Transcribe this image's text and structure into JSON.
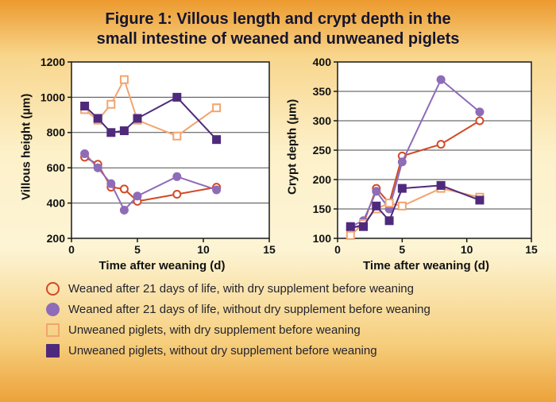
{
  "figure": {
    "title_line1": "Figure 1: Villous length and crypt depth in the",
    "title_line2": "small intestine of weaned and unweaned piglets"
  },
  "chart_data": [
    {
      "type": "line",
      "ylabel": "Villous height (µm)",
      "xlabel": "Time after weaning (d)",
      "ylim": [
        200,
        1200
      ],
      "yticks": [
        200,
        400,
        600,
        800,
        1000,
        1200
      ],
      "xlim": [
        0,
        15
      ],
      "xticks": [
        0,
        5,
        10,
        15
      ],
      "grid": "horizontal",
      "x": [
        1,
        2,
        3,
        4,
        5,
        8,
        11
      ],
      "series": [
        {
          "name": "Weaned after 21 days of life, with dry supplement before weaning",
          "marker": "open-circle",
          "color": "#d24a26",
          "values": [
            660,
            620,
            490,
            480,
            410,
            450,
            490
          ]
        },
        {
          "name": "Weaned after 21 days of life, without dry supplement before weaning",
          "marker": "filled-circle",
          "color": "#8e6cb8",
          "values": [
            680,
            600,
            510,
            360,
            440,
            550,
            475
          ]
        },
        {
          "name": "Unweaned piglets, with dry supplement before weaning",
          "marker": "open-square",
          "color": "#f2a470",
          "values": [
            930,
            870,
            960,
            1100,
            870,
            780,
            940
          ]
        },
        {
          "name": "Unweaned piglets, without dry supplement before weaning",
          "marker": "filled-square",
          "color": "#4f2a7c",
          "values": [
            950,
            880,
            800,
            810,
            880,
            1000,
            760
          ]
        }
      ]
    },
    {
      "type": "line",
      "ylabel": "Crypt depth (µm)",
      "xlabel": "Time after weaning (d)",
      "ylim": [
        100,
        400
      ],
      "yticks": [
        100,
        150,
        200,
        250,
        300,
        350,
        400
      ],
      "xlim": [
        0,
        15
      ],
      "xticks": [
        0,
        5,
        10,
        15
      ],
      "grid": "horizontal",
      "x": [
        1,
        2,
        3,
        4,
        5,
        8,
        11
      ],
      "series": [
        {
          "name": "Weaned after 21 days of life, with dry supplement before weaning",
          "marker": "open-circle",
          "color": "#d24a26",
          "values": [
            115,
            125,
            185,
            160,
            240,
            260,
            300
          ]
        },
        {
          "name": "Weaned after 21 days of life, without dry supplement before weaning",
          "marker": "filled-circle",
          "color": "#8e6cb8",
          "values": [
            120,
            130,
            180,
            150,
            230,
            370,
            315
          ]
        },
        {
          "name": "Unweaned piglets, with dry supplement before weaning",
          "marker": "open-square",
          "color": "#f2a470",
          "values": [
            105,
            125,
            150,
            160,
            155,
            185,
            170
          ]
        },
        {
          "name": "Unweaned piglets, without dry supplement before weaning",
          "marker": "filled-square",
          "color": "#4f2a7c",
          "values": [
            120,
            120,
            155,
            130,
            185,
            190,
            165
          ]
        }
      ]
    }
  ],
  "legend": {
    "items": [
      {
        "label": "Weaned after 21 days of life, with dry supplement before weaning",
        "marker": "open-circle",
        "color": "#d24a26"
      },
      {
        "label": "Weaned after 21 days of life, without dry supplement before weaning",
        "marker": "filled-circle",
        "color": "#8e6cb8"
      },
      {
        "label": "Unweaned piglets, with dry supplement before weaning",
        "marker": "open-square",
        "color": "#f2a470"
      },
      {
        "label": "Unweaned piglets, without dry supplement before weaning",
        "marker": "filled-square",
        "color": "#4f2a7c"
      }
    ]
  }
}
